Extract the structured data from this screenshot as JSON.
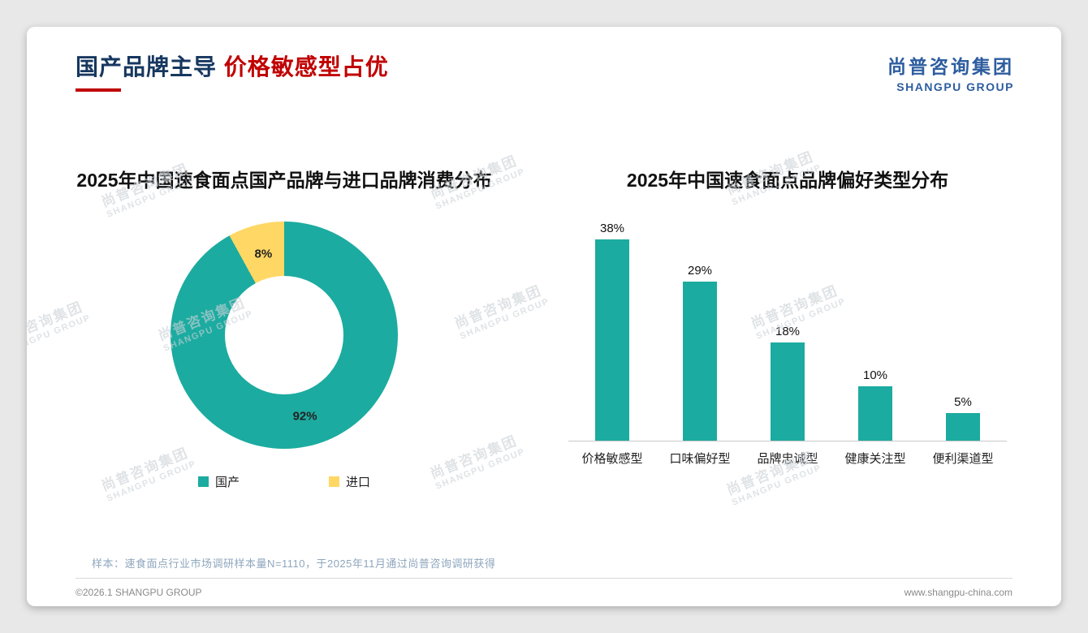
{
  "header": {
    "title_primary": "国产品牌主导",
    "title_accent": " 价格敏感型占优",
    "logo_cn": "尚普咨询集团",
    "logo_en": "SHANGPU GROUP"
  },
  "watermark": {
    "line1": "尚普咨询集团",
    "line2": "SHANGPU GROUP"
  },
  "chart_data": [
    {
      "type": "pie",
      "donut": true,
      "title": "2025年中国速食面点国产品牌与进口品牌消费分布",
      "labels": [
        "国产",
        "进口"
      ],
      "values": [
        92,
        8
      ],
      "unit": "%",
      "colors": [
        "#1caba0",
        "#ffd764"
      ],
      "legend_position": "bottom"
    },
    {
      "type": "bar",
      "title": "2025年中国速食面点品牌偏好类型分布",
      "categories": [
        "价格敏感型",
        "口味偏好型",
        "品牌忠诚型",
        "健康关注型",
        "便利渠道型"
      ],
      "values": [
        38,
        29,
        18,
        10,
        5
      ],
      "unit": "%",
      "bar_color": "#1caba0",
      "ylim": [
        0,
        40
      ],
      "grid": false,
      "value_labels": true
    }
  ],
  "footnote": "样本：速食面点行业市场调研样本量N=1110，于2025年11月通过尚普咨询调研获得",
  "footer": {
    "left": "©2026.1 SHANGPU GROUP",
    "right": "www.shangpu-china.com"
  }
}
